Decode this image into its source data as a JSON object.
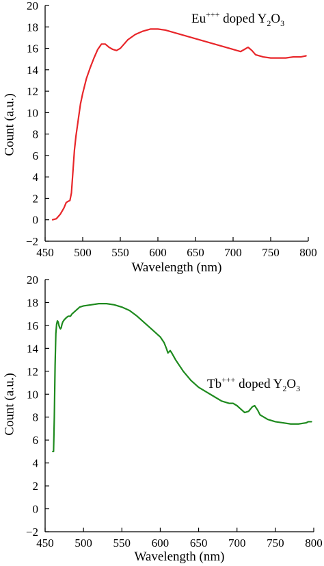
{
  "chart_data": [
    {
      "type": "line",
      "xlabel": "Wavelength (nm)",
      "ylabel": "Count (a.u.)",
      "xlim": [
        450,
        800
      ],
      "ylim": [
        -2,
        20
      ],
      "xticks": [
        "450",
        "500",
        "550",
        "600",
        "650",
        "700",
        "750",
        "800"
      ],
      "yticks": [
        "−2",
        "0",
        "2",
        "4",
        "6",
        "8",
        "10",
        "12",
        "14",
        "16",
        "18",
        "20"
      ],
      "annotation": {
        "base": "Eu",
        "sup": "+++",
        "middle": " doped Y",
        "sub1": "2",
        "mid2": "O",
        "sub2": "3"
      },
      "series": [
        {
          "color": "#e8262a",
          "x": [
            460,
            465,
            470,
            475,
            478,
            480,
            483,
            485,
            487,
            489,
            491,
            493,
            495,
            497,
            500,
            505,
            510,
            515,
            520,
            525,
            530,
            535,
            540,
            545,
            550,
            555,
            560,
            570,
            580,
            590,
            600,
            610,
            620,
            630,
            640,
            650,
            660,
            670,
            680,
            690,
            700,
            705,
            710,
            715,
            720,
            725,
            730,
            740,
            750,
            760,
            770,
            780,
            790,
            797
          ],
          "y": [
            0.0,
            0.1,
            0.5,
            1.1,
            1.6,
            1.7,
            1.8,
            2.5,
            4.5,
            6.5,
            7.8,
            8.8,
            9.8,
            10.8,
            11.8,
            13.2,
            14.2,
            15.1,
            15.9,
            16.4,
            16.4,
            16.1,
            15.9,
            15.8,
            16.0,
            16.4,
            16.8,
            17.3,
            17.6,
            17.8,
            17.8,
            17.7,
            17.5,
            17.3,
            17.1,
            16.9,
            16.7,
            16.5,
            16.3,
            16.1,
            15.9,
            15.8,
            15.7,
            15.9,
            16.1,
            15.8,
            15.4,
            15.2,
            15.1,
            15.1,
            15.1,
            15.2,
            15.2,
            15.3
          ]
        }
      ]
    },
    {
      "type": "line",
      "xlabel": "Wavelength (nm)",
      "ylabel": "Count (a.u.)",
      "xlim": [
        450,
        800
      ],
      "ylim": [
        -2,
        20
      ],
      "xticks": [
        "450",
        "500",
        "550",
        "600",
        "650",
        "700",
        "750",
        "800"
      ],
      "yticks": [
        "−2",
        "0",
        "2",
        "4",
        "6",
        "8",
        "10",
        "12",
        "14",
        "16",
        "18",
        "20"
      ],
      "annotation": {
        "base": "Tb",
        "sup": "+++",
        "middle": " doped Y",
        "sub1": "2",
        "mid2": "O",
        "sub2": "3"
      },
      "series": [
        {
          "color": "#1e8a1e",
          "x": [
            460,
            461,
            462,
            463,
            464,
            465,
            466,
            467,
            468,
            469,
            470,
            471,
            472,
            473,
            475,
            478,
            480,
            483,
            485,
            490,
            495,
            500,
            510,
            520,
            530,
            540,
            550,
            560,
            570,
            580,
            590,
            600,
            605,
            608,
            610,
            613,
            615,
            620,
            630,
            640,
            650,
            660,
            670,
            680,
            690,
            695,
            700,
            705,
            710,
            715,
            720,
            723,
            727,
            730,
            740,
            750,
            760,
            770,
            780,
            790,
            793,
            797
          ],
          "y": [
            5.0,
            5.0,
            8.0,
            12.5,
            15.3,
            16.1,
            16.4,
            16.3,
            16.0,
            15.8,
            15.7,
            15.8,
            16.1,
            16.3,
            16.5,
            16.7,
            16.8,
            16.8,
            17.0,
            17.3,
            17.6,
            17.7,
            17.8,
            17.9,
            17.9,
            17.8,
            17.6,
            17.3,
            16.8,
            16.2,
            15.6,
            15.0,
            14.5,
            14.0,
            13.6,
            13.8,
            13.6,
            13.0,
            12.0,
            11.2,
            10.6,
            10.2,
            9.8,
            9.4,
            9.2,
            9.2,
            9.0,
            8.7,
            8.4,
            8.5,
            8.9,
            9.0,
            8.6,
            8.2,
            7.8,
            7.6,
            7.5,
            7.4,
            7.4,
            7.5,
            7.6,
            7.6
          ]
        }
      ]
    }
  ]
}
